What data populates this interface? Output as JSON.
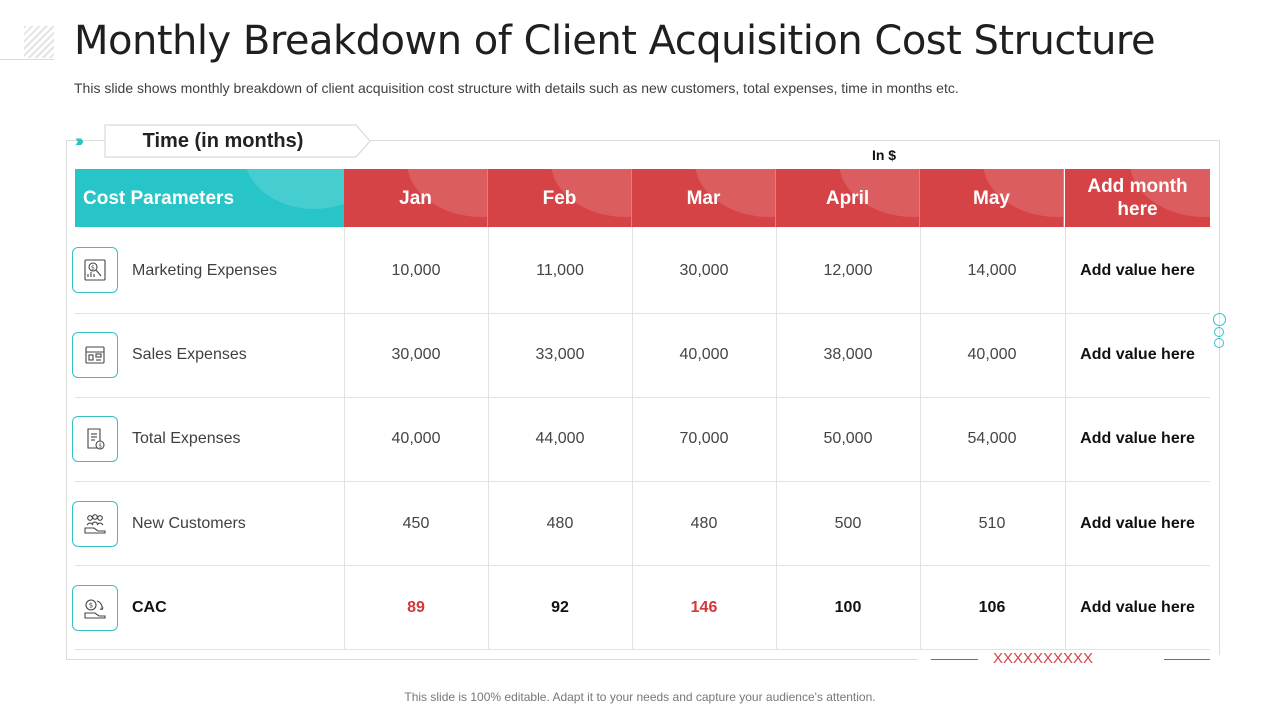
{
  "slide": {
    "title": "Monthly Breakdown of Client Acquisition Cost Structure",
    "subtitle": "This slide shows monthly breakdown of client acquisition cost structure with details such as new customers, total expenses, time in months etc.",
    "time_tab": "Time (in months)",
    "unit": "In $",
    "footer": "This slide is 100% editable. Adapt it to your needs and capture your audience's attention.",
    "x_marks": "XXXXXXXXXX"
  },
  "colors": {
    "teal": "#27c5c7",
    "red": "#d64346",
    "value_red": "#d3373a"
  },
  "table": {
    "header": {
      "param": "Cost Parameters",
      "months": [
        "Jan",
        "Feb",
        "Mar",
        "April",
        "May"
      ],
      "extra_line1": "Add month",
      "extra_line2": "here"
    },
    "rows": [
      {
        "label": "Marketing Expenses",
        "icon": "marketing-icon",
        "values": [
          "10,000",
          "11,000",
          "30,000",
          "12,000",
          "14,000"
        ],
        "extra": "Add value here"
      },
      {
        "label": "Sales Expenses",
        "icon": "sales-icon",
        "values": [
          "30,000",
          "33,000",
          "40,000",
          "38,000",
          "40,000"
        ],
        "extra": "Add value here"
      },
      {
        "label": "Total Expenses",
        "icon": "invoice-icon",
        "values": [
          "40,000",
          "44,000",
          "70,000",
          "50,000",
          "54,000"
        ],
        "extra": "Add value here"
      },
      {
        "label": "New Customers",
        "icon": "customers-icon",
        "values": [
          "450",
          "480",
          "480",
          "500",
          "510"
        ],
        "extra": "Add value here"
      },
      {
        "label": "CAC",
        "icon": "cost-icon",
        "values": [
          "89",
          "92",
          "146",
          "100",
          "106"
        ],
        "extra": "Add value here"
      }
    ]
  }
}
